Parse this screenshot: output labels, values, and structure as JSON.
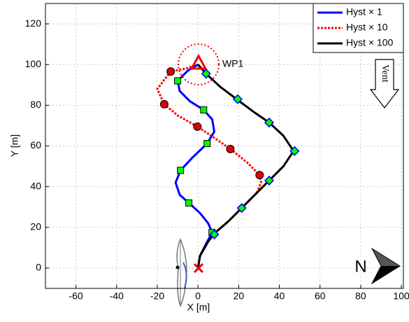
{
  "chart_data": {
    "type": "line",
    "xlabel": "X [m]",
    "ylabel": "Y [m]",
    "xlim": [
      -75,
      101
    ],
    "ylim": [
      -10,
      130
    ],
    "xticks": [
      -60,
      -40,
      -20,
      0,
      20,
      40,
      60,
      80,
      100
    ],
    "yticks": [
      0,
      20,
      40,
      60,
      80,
      100,
      120
    ],
    "grid": true,
    "legend": "upper right",
    "annotations": {
      "waypoint": "WP1",
      "wind": "Vent",
      "north": "N"
    },
    "series": [
      {
        "name": "Hyst × 1",
        "color": "#0000ff",
        "dash": "solid",
        "marker": "square",
        "marker_color": "#00ff00",
        "x": [
          0,
          1,
          4,
          7,
          5,
          1,
          -4.5,
          -9,
          -11,
          -8.6,
          -3,
          4.5,
          8,
          7,
          2.8,
          -4,
          -9,
          -10,
          -5,
          0
        ],
        "y": [
          0,
          6,
          12,
          17.5,
          22,
          27,
          32,
          36,
          42,
          48,
          54,
          61.2,
          67,
          73,
          77.7,
          82,
          87,
          92,
          97,
          100
        ],
        "marker_x": [
          6.9,
          -4.5,
          -8.6,
          4.5,
          2.8,
          -10
        ],
        "marker_y": [
          17.5,
          32,
          48,
          61.2,
          77.7,
          92
        ]
      },
      {
        "name": "Hyst × 10",
        "color": "#ff0000",
        "dash": "dotted",
        "marker": "circle",
        "marker_color": "#dd0000",
        "x": [
          0,
          1,
          5,
          8,
          15,
          22,
          29,
          31,
          30.3,
          24,
          15.9,
          8,
          -0.3,
          -10,
          -16.6,
          -20,
          -13.4,
          -6,
          0
        ],
        "y": [
          0,
          6,
          13,
          17,
          23,
          30,
          37,
          42,
          45.7,
          52,
          58.5,
          64,
          69.5,
          75,
          80.5,
          88,
          96.6,
          98,
          100
        ],
        "marker_x": [
          30.3,
          15.9,
          -0.3,
          -16.6,
          -13.4
        ],
        "marker_y": [
          45.7,
          58.5,
          69.5,
          80.5,
          96.6
        ]
      },
      {
        "name": "Hyst × 100",
        "color": "#000000",
        "dash": "solid",
        "marker": "diamond",
        "marker_color": "#00ff00",
        "x": [
          0,
          1,
          5,
          8,
          15,
          22,
          29,
          35,
          42,
          47,
          42,
          35,
          27,
          19,
          11,
          4,
          0
        ],
        "y": [
          0,
          6,
          13,
          17,
          23,
          30,
          37,
          43,
          50,
          57.5,
          65,
          71.5,
          77,
          83,
          89,
          95.5,
          100
        ],
        "marker_x": [
          8,
          21.5,
          35,
          47.5,
          35,
          19.5,
          4
        ],
        "marker_y": [
          16.5,
          29.5,
          43,
          57.5,
          71.5,
          83,
          95.5
        ]
      }
    ]
  }
}
